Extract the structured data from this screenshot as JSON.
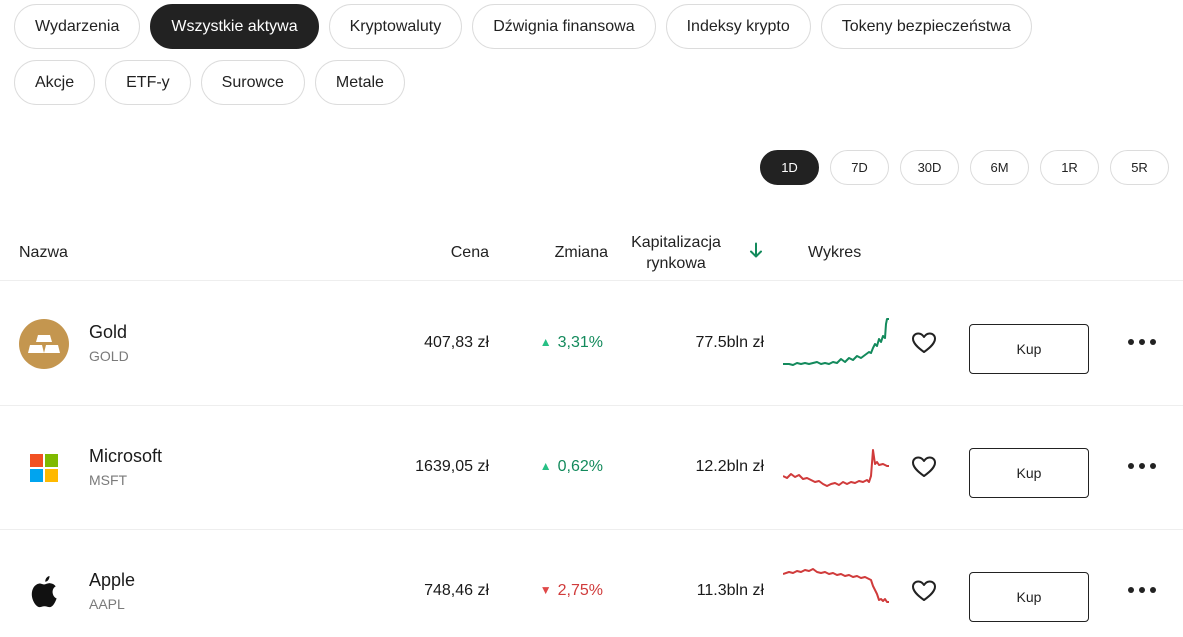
{
  "categories": {
    "row1": [
      "Wydarzenia",
      "Wszystkie aktywa",
      "Kryptowaluty",
      "Dźwignia finansowa",
      "Indeksy krypto",
      "Tokeny bezpieczeństwa"
    ],
    "row2": [
      "Akcje",
      "ETF-y",
      "Surowce",
      "Metale"
    ],
    "active": "Wszystkie aktywa"
  },
  "periods": {
    "items": [
      "1D",
      "7D",
      "30D",
      "6M",
      "1R",
      "5R"
    ],
    "active": "1D"
  },
  "table": {
    "headers": {
      "name": "Nazwa",
      "price": "Cena",
      "change": "Zmiana",
      "market_cap_line1": "Kapitalizacja",
      "market_cap_line2": "rynkowa",
      "chart": "Wykres"
    },
    "sort_icon": "arrow-down-icon",
    "buy_label": "Kup",
    "rows": [
      {
        "name": "Gold",
        "ticker": "GOLD",
        "price": "407,83 zł",
        "change": "3,31%",
        "direction": "up",
        "market_cap": "77.5bln zł",
        "logo": "gold-bars-icon",
        "spark_color": "#138a5c"
      },
      {
        "name": "Microsoft",
        "ticker": "MSFT",
        "price": "1639,05 zł",
        "change": "0,62%",
        "direction": "up",
        "market_cap": "12.2bln zł",
        "logo": "microsoft-logo-icon",
        "spark_color": "#d03b3b"
      },
      {
        "name": "Apple",
        "ticker": "AAPL",
        "price": "748,46 zł",
        "change": "2,75%",
        "direction": "down",
        "market_cap": "11.3bln zł",
        "logo": "apple-logo-icon",
        "spark_color": "#d03b3b"
      }
    ]
  },
  "colors": {
    "active_bg": "#222222",
    "up": "#138a5c",
    "down": "#d03b3b",
    "gold_logo": "#c4964f"
  }
}
